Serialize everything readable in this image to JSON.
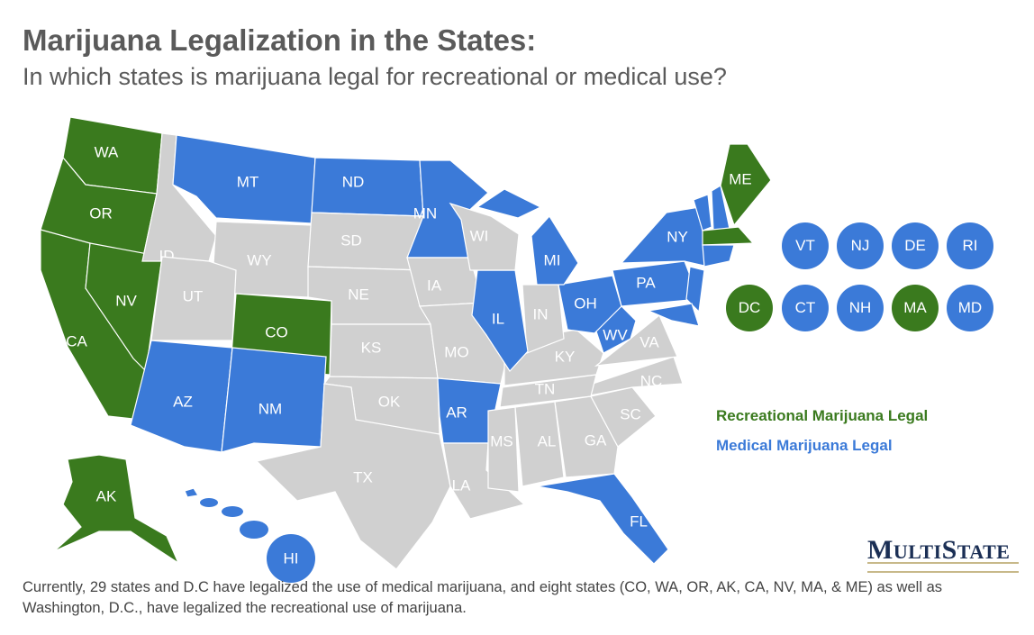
{
  "title": "Marijuana Legalization in the States:",
  "subtitle": "In which states is marijuana legal for recreational or medical use?",
  "colors": {
    "recreational": "#3a7a1e",
    "medical": "#3b7ad8",
    "none": "#d0d0d0"
  },
  "legend": {
    "recreational": "Recreational Marijuana Legal",
    "medical": "Medical Marijuana Legal"
  },
  "states": {
    "WA": "recreational",
    "OR": "recreational",
    "CA": "recreational",
    "NV": "recreational",
    "CO": "recreational",
    "AK": "recreational",
    "ME": "recreational",
    "MA": "recreational",
    "MT": "medical",
    "ND": "medical",
    "MN": "medical",
    "MI": "medical",
    "IL": "medical",
    "AR": "medical",
    "AZ": "medical",
    "NM": "medical",
    "OH": "medical",
    "WV": "medical",
    "PA": "medical",
    "NY": "medical",
    "FL": "medical",
    "HI": "medical",
    "NJ": "medical",
    "MD": "medical",
    "VT": "medical",
    "NH": "medical",
    "CT": "medical",
    "RI": "medical",
    "DE": "medical",
    "ID": "none",
    "WY": "none",
    "UT": "none",
    "SD": "none",
    "NE": "none",
    "KS": "none",
    "OK": "none",
    "TX": "none",
    "IA": "none",
    "MO": "none",
    "LA": "none",
    "MS": "none",
    "AL": "none",
    "GA": "none",
    "SC": "none",
    "NC": "none",
    "TN": "none",
    "KY": "none",
    "VA": "none",
    "IN": "none",
    "WI": "none"
  },
  "small_states": [
    {
      "code": "VT",
      "status": "medical"
    },
    {
      "code": "NJ",
      "status": "medical"
    },
    {
      "code": "DE",
      "status": "medical"
    },
    {
      "code": "RI",
      "status": "medical"
    },
    {
      "code": "DC",
      "status": "recreational"
    },
    {
      "code": "CT",
      "status": "medical"
    },
    {
      "code": "NH",
      "status": "medical"
    },
    {
      "code": "MA",
      "status": "recreational"
    },
    {
      "code": "MD",
      "status": "medical"
    }
  ],
  "logo": {
    "text": "MultiState"
  },
  "footer": "Currently, 29 states and D.C have legalized the use of medical marijuana, and eight states (CO, WA, OR, AK, CA, NV, MA, & ME) as well as Washington, D.C., have legalized the recreational use of marijuana."
}
